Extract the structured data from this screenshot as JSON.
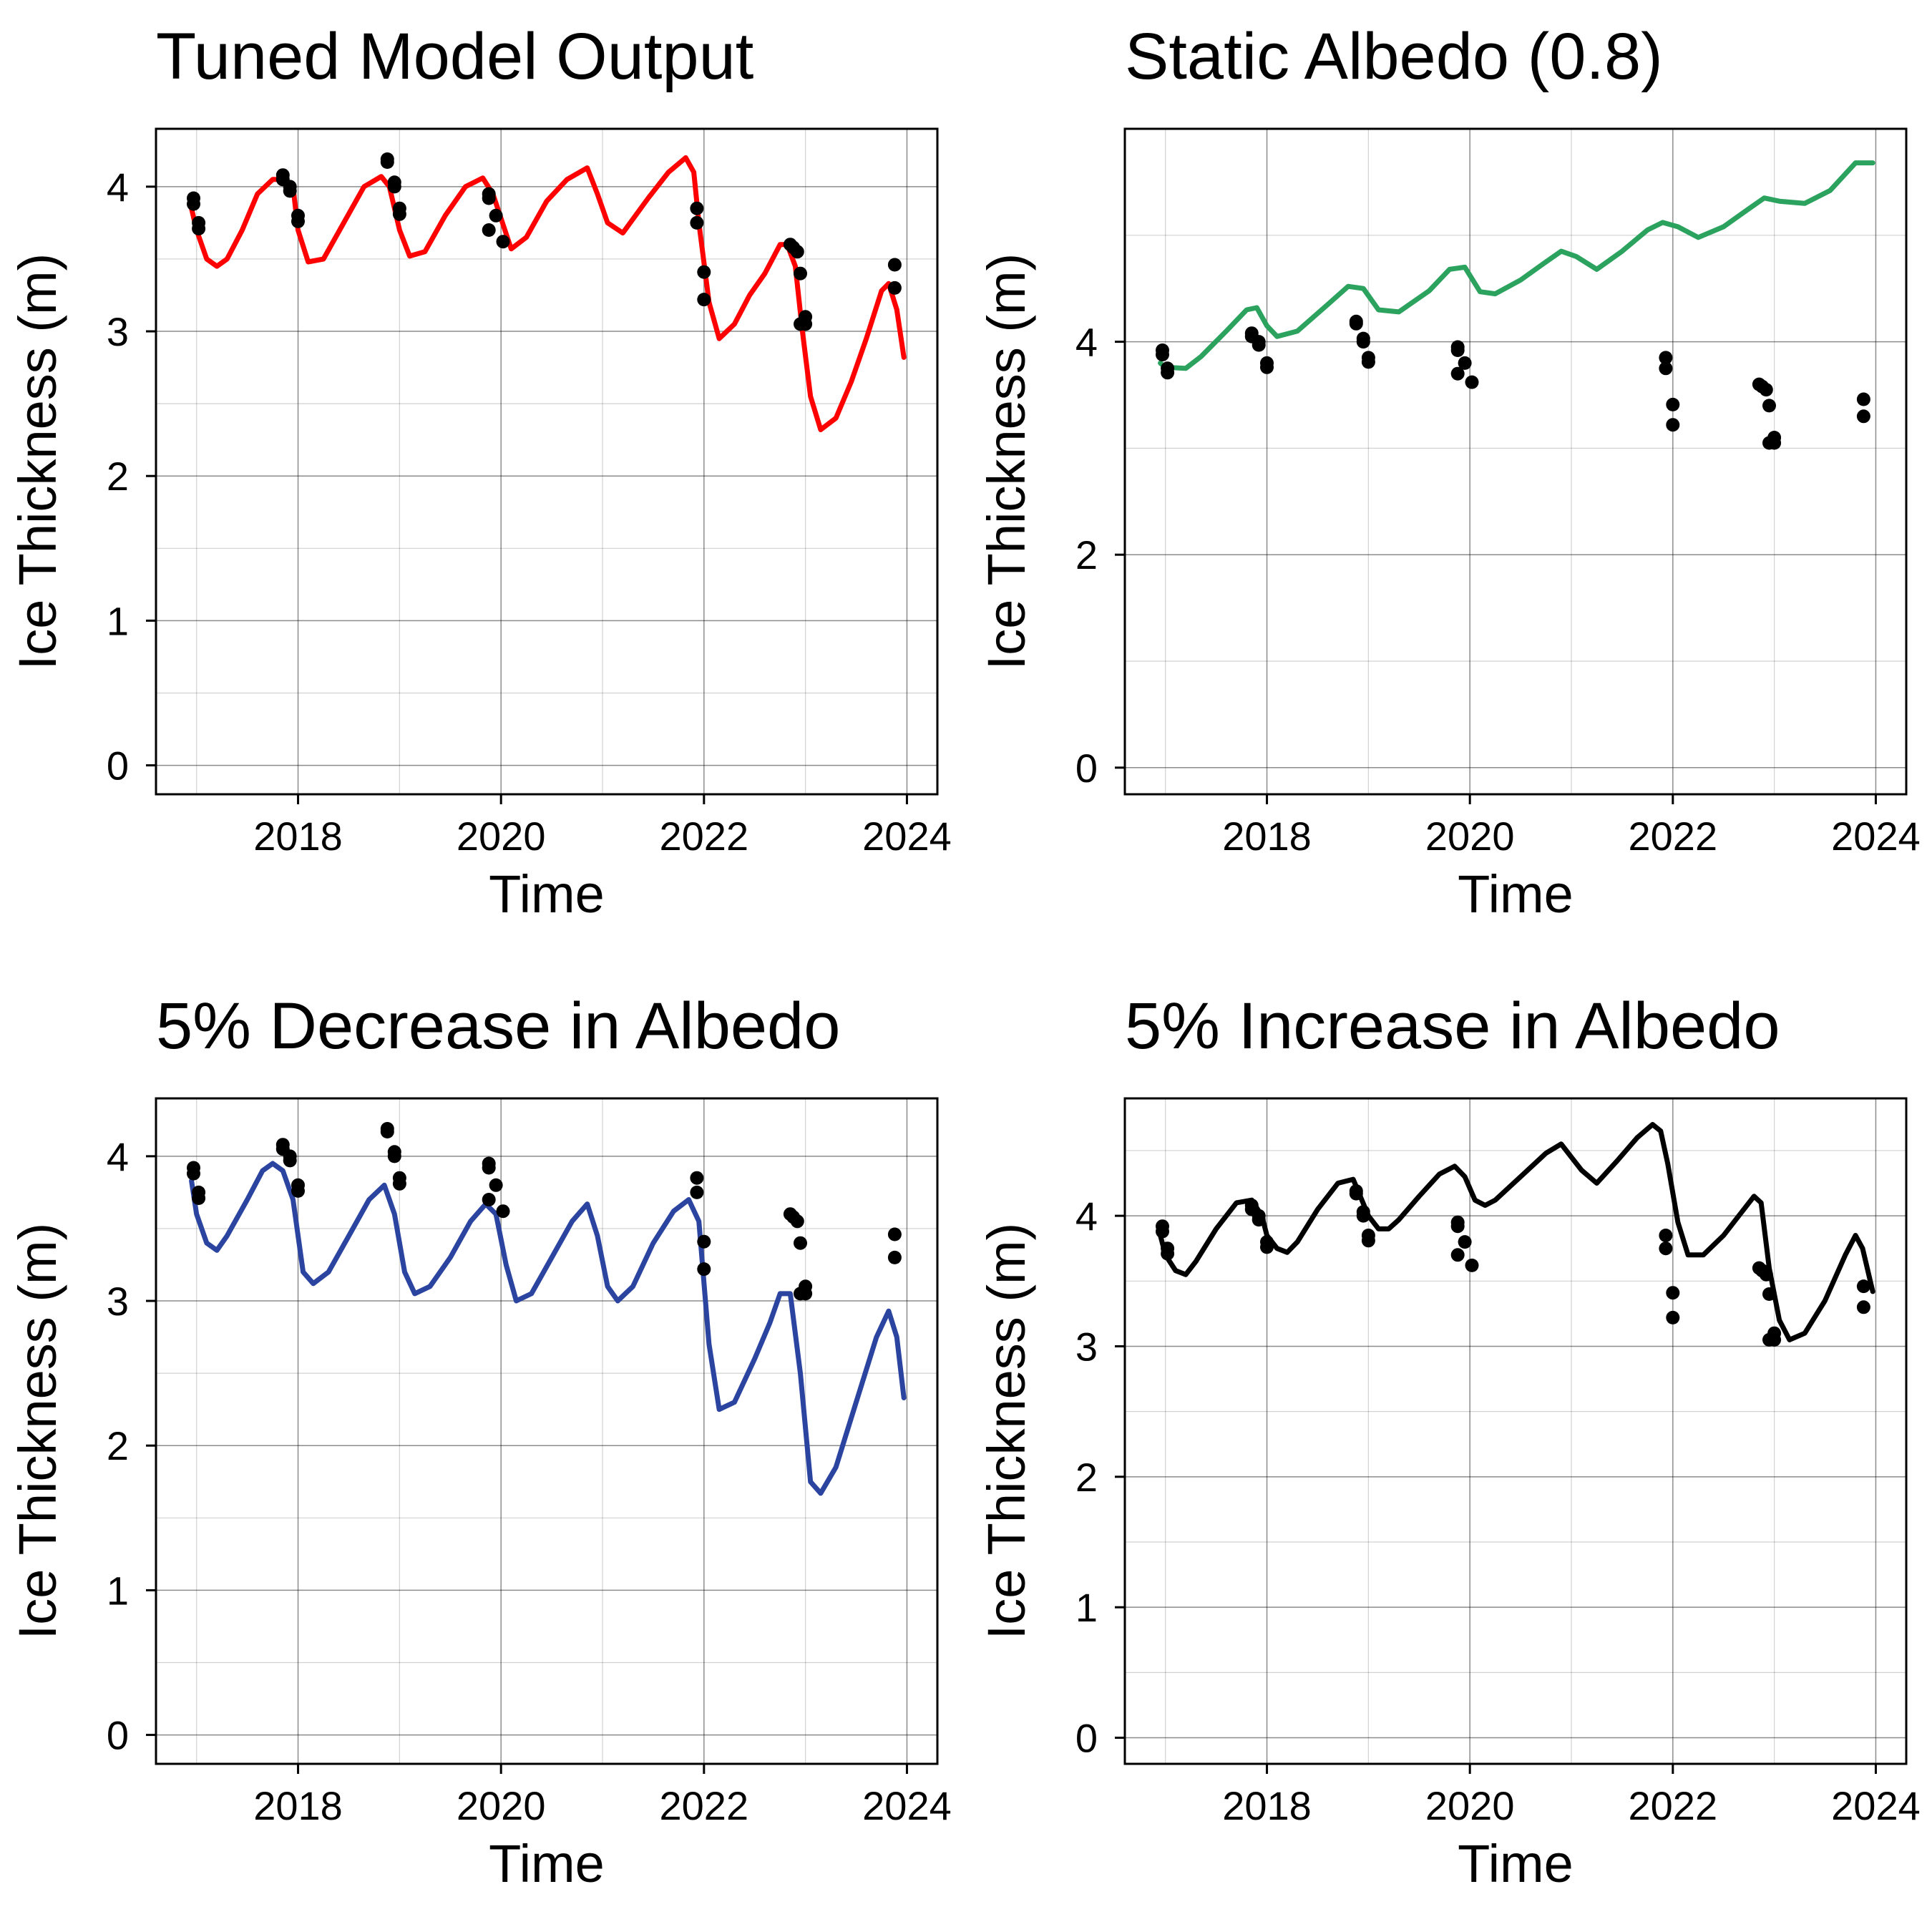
{
  "chart_data": [
    {
      "type": "line",
      "title": "Tuned Model Output",
      "xlabel": "Time",
      "ylabel": "Ice Thickness (m)",
      "xlim": [
        2016.6,
        2024.3
      ],
      "ylim": [
        -0.2,
        4.4
      ],
      "x_ticks": [
        2018,
        2020,
        2022,
        2024
      ],
      "x_tick_labels": [
        "2018",
        "2020",
        "2022",
        "2024"
      ],
      "y_ticks": [
        0,
        1,
        2,
        3,
        4
      ],
      "y_tick_labels": [
        "0",
        "1",
        "2",
        "3",
        "4"
      ],
      "grid": true,
      "series": [
        {
          "kind": "line",
          "color": "#ff0000",
          "x": [
            2016.95,
            2017.0,
            2017.1,
            2017.2,
            2017.3,
            2017.45,
            2017.6,
            2017.75,
            2017.85,
            2017.95,
            2018.0,
            2018.1,
            2018.25,
            2018.45,
            2018.65,
            2018.82,
            2018.9,
            2019.0,
            2019.1,
            2019.25,
            2019.45,
            2019.65,
            2019.82,
            2019.92,
            2020.0,
            2020.1,
            2020.25,
            2020.45,
            2020.65,
            2020.85,
            2020.95,
            2021.05,
            2021.2,
            2021.45,
            2021.65,
            2021.82,
            2021.9,
            2021.95,
            2022.05,
            2022.15,
            2022.3,
            2022.45,
            2022.6,
            2022.75,
            2022.82,
            2022.9,
            2022.97,
            2023.05,
            2023.15,
            2023.3,
            2023.45,
            2023.6,
            2023.75,
            2023.82,
            2023.9,
            2023.97
          ],
          "y": [
            3.85,
            3.7,
            3.5,
            3.45,
            3.5,
            3.7,
            3.95,
            4.05,
            4.05,
            4.0,
            3.7,
            3.48,
            3.5,
            3.75,
            4.0,
            4.07,
            4.0,
            3.7,
            3.52,
            3.55,
            3.8,
            4.0,
            4.06,
            3.95,
            3.78,
            3.57,
            3.65,
            3.9,
            4.05,
            4.13,
            3.95,
            3.75,
            3.68,
            3.92,
            4.1,
            4.2,
            4.1,
            3.75,
            3.2,
            2.95,
            3.05,
            3.25,
            3.4,
            3.6,
            3.6,
            3.45,
            3.0,
            2.55,
            2.32,
            2.4,
            2.65,
            2.95,
            3.28,
            3.33,
            3.15,
            2.82
          ]
        },
        {
          "kind": "scatter",
          "color": "#000000",
          "x": [
            2016.97,
            2016.97,
            2017.02,
            2017.02,
            2017.85,
            2017.85,
            2017.92,
            2017.92,
            2018.0,
            2018.0,
            2018.88,
            2018.88,
            2018.95,
            2018.95,
            2019.0,
            2019.0,
            2019.88,
            2019.88,
            2019.88,
            2019.95,
            2020.02,
            2021.93,
            2021.93,
            2022.0,
            2022.0,
            2022.85,
            2022.88,
            2022.92,
            2022.95,
            2022.95,
            2023.0,
            2023.0,
            2023.88,
            2023.88
          ],
          "y": [
            3.92,
            3.88,
            3.75,
            3.71,
            4.08,
            4.05,
            4.0,
            3.97,
            3.8,
            3.76,
            4.19,
            4.17,
            4.03,
            4.0,
            3.85,
            3.81,
            3.95,
            3.92,
            3.7,
            3.8,
            3.62,
            3.85,
            3.75,
            3.41,
            3.22,
            3.6,
            3.58,
            3.55,
            3.4,
            3.05,
            3.1,
            3.05,
            3.46,
            3.3
          ]
        }
      ]
    },
    {
      "type": "line",
      "title": "Static Albedo (0.8)",
      "xlabel": "Time",
      "ylabel": "Ice Thickness (m)",
      "xlim": [
        2016.6,
        2024.3
      ],
      "ylim": [
        -0.25,
        6.0
      ],
      "x_ticks": [
        2018,
        2020,
        2022,
        2024
      ],
      "x_tick_labels": [
        "2018",
        "2020",
        "2022",
        "2024"
      ],
      "y_ticks": [
        0,
        2,
        4
      ],
      "y_tick_labels": [
        "0",
        "2",
        "4"
      ],
      "grid": true,
      "series": [
        {
          "kind": "line",
          "color": "#2ca25f",
          "x": [
            2016.95,
            2017.0,
            2017.2,
            2017.35,
            2017.6,
            2017.8,
            2017.9,
            2018.0,
            2018.1,
            2018.3,
            2018.6,
            2018.8,
            2018.95,
            2019.1,
            2019.3,
            2019.6,
            2019.8,
            2019.95,
            2020.1,
            2020.25,
            2020.5,
            2020.75,
            2020.9,
            2021.05,
            2021.25,
            2021.5,
            2021.75,
            2021.9,
            2022.05,
            2022.25,
            2022.5,
            2022.75,
            2022.9,
            2023.05,
            2023.3,
            2023.55,
            2023.8,
            2023.97
          ],
          "y": [
            3.8,
            3.76,
            3.75,
            3.86,
            4.1,
            4.3,
            4.32,
            4.15,
            4.05,
            4.1,
            4.35,
            4.52,
            4.5,
            4.3,
            4.28,
            4.48,
            4.68,
            4.7,
            4.47,
            4.45,
            4.58,
            4.75,
            4.85,
            4.8,
            4.68,
            4.85,
            5.05,
            5.12,
            5.08,
            4.98,
            5.08,
            5.25,
            5.35,
            5.32,
            5.3,
            5.42,
            5.68,
            5.68
          ]
        },
        {
          "kind": "scatter",
          "color": "#000000",
          "x": [
            2016.97,
            2016.97,
            2017.02,
            2017.02,
            2017.85,
            2017.85,
            2017.92,
            2017.92,
            2018.0,
            2018.0,
            2018.88,
            2018.88,
            2018.95,
            2018.95,
            2019.0,
            2019.0,
            2019.88,
            2019.88,
            2019.88,
            2019.95,
            2020.02,
            2021.93,
            2021.93,
            2022.0,
            2022.0,
            2022.85,
            2022.88,
            2022.92,
            2022.95,
            2022.95,
            2023.0,
            2023.0,
            2023.88,
            2023.88
          ],
          "y": [
            3.92,
            3.88,
            3.75,
            3.71,
            4.08,
            4.05,
            4.0,
            3.97,
            3.8,
            3.76,
            4.19,
            4.17,
            4.03,
            4.0,
            3.85,
            3.81,
            3.95,
            3.92,
            3.7,
            3.8,
            3.62,
            3.85,
            3.75,
            3.41,
            3.22,
            3.6,
            3.58,
            3.55,
            3.4,
            3.05,
            3.1,
            3.05,
            3.46,
            3.3
          ]
        }
      ]
    },
    {
      "type": "line",
      "title": "5% Decrease in Albedo",
      "xlabel": "Time",
      "ylabel": "Ice Thickness (m)",
      "xlim": [
        2016.6,
        2024.3
      ],
      "ylim": [
        -0.2,
        4.4
      ],
      "x_ticks": [
        2018,
        2020,
        2022,
        2024
      ],
      "x_tick_labels": [
        "2018",
        "2020",
        "2022",
        "2024"
      ],
      "y_ticks": [
        0,
        1,
        2,
        3,
        4
      ],
      "y_tick_labels": [
        "0",
        "1",
        "2",
        "3",
        "4"
      ],
      "grid": true,
      "series": [
        {
          "kind": "line",
          "color": "#2b44a0",
          "x": [
            2016.95,
            2017.0,
            2017.1,
            2017.2,
            2017.3,
            2017.5,
            2017.65,
            2017.75,
            2017.85,
            2017.95,
            2018.05,
            2018.15,
            2018.3,
            2018.5,
            2018.7,
            2018.85,
            2018.95,
            2019.05,
            2019.15,
            2019.3,
            2019.5,
            2019.7,
            2019.85,
            2019.95,
            2020.05,
            2020.15,
            2020.3,
            2020.5,
            2020.7,
            2020.85,
            2020.95,
            2021.05,
            2021.15,
            2021.3,
            2021.5,
            2021.7,
            2021.85,
            2021.95,
            2022.05,
            2022.15,
            2022.3,
            2022.5,
            2022.65,
            2022.75,
            2022.85,
            2022.95,
            2023.05,
            2023.15,
            2023.3,
            2023.5,
            2023.7,
            2023.82,
            2023.9,
            2023.97
          ],
          "y": [
            3.83,
            3.6,
            3.4,
            3.35,
            3.45,
            3.7,
            3.9,
            3.95,
            3.9,
            3.7,
            3.2,
            3.12,
            3.2,
            3.45,
            3.7,
            3.8,
            3.6,
            3.2,
            3.05,
            3.1,
            3.3,
            3.55,
            3.67,
            3.6,
            3.25,
            3.0,
            3.05,
            3.3,
            3.55,
            3.67,
            3.45,
            3.1,
            3.0,
            3.1,
            3.4,
            3.62,
            3.7,
            3.55,
            2.7,
            2.25,
            2.3,
            2.6,
            2.85,
            3.05,
            3.05,
            2.5,
            1.75,
            1.67,
            1.85,
            2.3,
            2.75,
            2.93,
            2.75,
            2.33
          ]
        },
        {
          "kind": "scatter",
          "color": "#000000",
          "x": [
            2016.97,
            2016.97,
            2017.02,
            2017.02,
            2017.85,
            2017.85,
            2017.92,
            2017.92,
            2018.0,
            2018.0,
            2018.88,
            2018.88,
            2018.95,
            2018.95,
            2019.0,
            2019.0,
            2019.88,
            2019.88,
            2019.88,
            2019.95,
            2020.02,
            2021.93,
            2021.93,
            2022.0,
            2022.0,
            2022.85,
            2022.88,
            2022.92,
            2022.95,
            2022.95,
            2023.0,
            2023.0,
            2023.88,
            2023.88
          ],
          "y": [
            3.92,
            3.88,
            3.75,
            3.71,
            4.08,
            4.05,
            4.0,
            3.97,
            3.8,
            3.76,
            4.19,
            4.17,
            4.03,
            4.0,
            3.85,
            3.81,
            3.95,
            3.92,
            3.7,
            3.8,
            3.62,
            3.85,
            3.75,
            3.41,
            3.22,
            3.6,
            3.58,
            3.55,
            3.4,
            3.05,
            3.1,
            3.05,
            3.46,
            3.3
          ]
        }
      ]
    },
    {
      "type": "line",
      "title": "5% Increase in Albedo",
      "xlabel": "Time",
      "ylabel": "Ice Thickness (m)",
      "xlim": [
        2016.6,
        2024.3
      ],
      "ylim": [
        -0.2,
        4.9
      ],
      "x_ticks": [
        2018,
        2020,
        2022,
        2024
      ],
      "x_tick_labels": [
        "2018",
        "2020",
        "2022",
        "2024"
      ],
      "y_ticks": [
        0,
        1,
        2,
        3,
        4
      ],
      "y_tick_labels": [
        "0",
        "1",
        "2",
        "3",
        "4"
      ],
      "grid": true,
      "series": [
        {
          "kind": "line",
          "color": "#000000",
          "x": [
            2016.95,
            2017.0,
            2017.1,
            2017.2,
            2017.3,
            2017.5,
            2017.7,
            2017.85,
            2017.95,
            2018.0,
            2018.1,
            2018.2,
            2018.3,
            2018.5,
            2018.7,
            2018.85,
            2018.92,
            2019.0,
            2019.1,
            2019.2,
            2019.3,
            2019.5,
            2019.7,
            2019.85,
            2019.95,
            2020.05,
            2020.15,
            2020.25,
            2020.5,
            2020.75,
            2020.9,
            2021.0,
            2021.1,
            2021.25,
            2021.45,
            2021.65,
            2021.8,
            2021.88,
            2021.95,
            2022.05,
            2022.15,
            2022.3,
            2022.5,
            2022.7,
            2022.8,
            2022.87,
            2022.95,
            2023.05,
            2023.15,
            2023.3,
            2023.5,
            2023.7,
            2023.8,
            2023.87,
            2023.97
          ],
          "y": [
            3.85,
            3.7,
            3.58,
            3.55,
            3.65,
            3.9,
            4.1,
            4.12,
            4.0,
            3.85,
            3.75,
            3.72,
            3.8,
            4.05,
            4.25,
            4.28,
            4.15,
            4.0,
            3.9,
            3.9,
            3.97,
            4.15,
            4.32,
            4.38,
            4.3,
            4.12,
            4.08,
            4.12,
            4.3,
            4.48,
            4.55,
            4.45,
            4.35,
            4.25,
            4.42,
            4.6,
            4.7,
            4.65,
            4.4,
            3.95,
            3.7,
            3.7,
            3.85,
            4.05,
            4.15,
            4.1,
            3.6,
            3.2,
            3.05,
            3.1,
            3.35,
            3.7,
            3.85,
            3.75,
            3.42
          ]
        },
        {
          "kind": "scatter",
          "color": "#000000",
          "x": [
            2016.97,
            2016.97,
            2017.02,
            2017.02,
            2017.85,
            2017.85,
            2017.92,
            2017.92,
            2018.0,
            2018.0,
            2018.88,
            2018.88,
            2018.95,
            2018.95,
            2019.0,
            2019.0,
            2019.88,
            2019.88,
            2019.88,
            2019.95,
            2020.02,
            2021.93,
            2021.93,
            2022.0,
            2022.0,
            2022.85,
            2022.88,
            2022.92,
            2022.95,
            2022.95,
            2023.0,
            2023.0,
            2023.88,
            2023.88
          ],
          "y": [
            3.92,
            3.88,
            3.75,
            3.71,
            4.08,
            4.05,
            4.0,
            3.97,
            3.8,
            3.76,
            4.19,
            4.17,
            4.03,
            4.0,
            3.85,
            3.81,
            3.95,
            3.92,
            3.7,
            3.8,
            3.62,
            3.85,
            3.75,
            3.41,
            3.22,
            3.6,
            3.58,
            3.55,
            3.4,
            3.05,
            3.1,
            3.05,
            3.46,
            3.3
          ]
        }
      ]
    }
  ]
}
